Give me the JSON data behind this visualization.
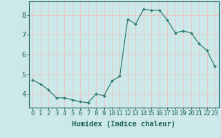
{
  "x": [
    0,
    1,
    2,
    3,
    4,
    5,
    6,
    7,
    8,
    9,
    10,
    11,
    12,
    13,
    14,
    15,
    16,
    17,
    18,
    19,
    20,
    21,
    22,
    23
  ],
  "y": [
    4.7,
    4.5,
    4.2,
    3.8,
    3.8,
    3.7,
    3.6,
    3.55,
    4.0,
    3.9,
    4.65,
    4.9,
    7.8,
    7.55,
    8.3,
    8.25,
    8.25,
    7.75,
    7.1,
    7.2,
    7.1,
    6.55,
    6.2,
    5.4
  ],
  "line_color": "#2e7d6e",
  "marker": "D",
  "marker_size": 2.0,
  "bg_color": "#cce8e8",
  "grid_color": "#e8c8c8",
  "xlabel": "Humidex (Indice chaleur)",
  "ylim": [
    3.3,
    8.7
  ],
  "xlim": [
    -0.5,
    23.5
  ],
  "yticks": [
    4,
    5,
    6,
    7,
    8
  ],
  "xticks": [
    0,
    1,
    2,
    3,
    4,
    5,
    6,
    7,
    8,
    9,
    10,
    11,
    12,
    13,
    14,
    15,
    16,
    17,
    18,
    19,
    20,
    21,
    22,
    23
  ],
  "xtick_labels": [
    "0",
    "1",
    "2",
    "3",
    "4",
    "5",
    "6",
    "7",
    "8",
    "9",
    "10",
    "11",
    "12",
    "13",
    "14",
    "15",
    "16",
    "17",
    "18",
    "19",
    "20",
    "21",
    "22",
    "23"
  ],
  "font_color": "#1a5f5a",
  "tick_fontsize": 6.5,
  "label_fontsize": 7.5
}
